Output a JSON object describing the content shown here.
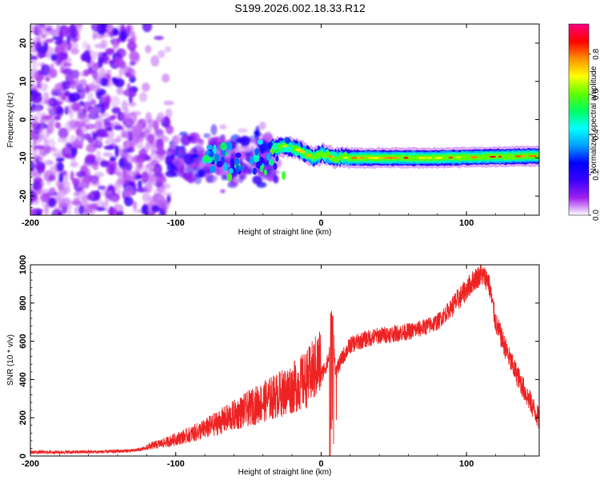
{
  "title": "S199.2026.002.18.33.R12",
  "chart_data": [
    {
      "type": "heatmap",
      "name": "spectrogram",
      "xlabel": "Height of straight line (km)",
      "ylabel": "Frequency (Hz)",
      "xlim": [
        -200,
        150
      ],
      "ylim": [
        -25,
        25
      ],
      "xticks": [
        -200,
        -100,
        0,
        100
      ],
      "yticks": [
        -20,
        -10,
        0,
        10,
        20
      ],
      "colorbar": {
        "label": "Normalized spectral amplitude",
        "range": [
          0,
          0.95
        ],
        "ticks": [
          "0.0",
          "0.2",
          "0.4",
          "0.6",
          "0.8"
        ],
        "tick_values": [
          0.0,
          0.2,
          0.4,
          0.6,
          0.8
        ],
        "stops": [
          "#ffffff",
          "#a020f0",
          "#3a00ff",
          "#0000ff",
          "#00a0ff",
          "#00ffff",
          "#00ff60",
          "#60ff00",
          "#ffff00",
          "#ff9000",
          "#ff0000",
          "#ff0080"
        ]
      },
      "trace_center_hz": [
        {
          "x": -70,
          "y": -9
        },
        {
          "x": -45,
          "y": -8
        },
        {
          "x": -25,
          "y": -7
        },
        {
          "x": -15,
          "y": -8
        },
        {
          "x": -5,
          "y": -10
        },
        {
          "x": 0,
          "y": -9
        },
        {
          "x": 10,
          "y": -10
        },
        {
          "x": 30,
          "y": -10
        },
        {
          "x": 80,
          "y": -10
        },
        {
          "x": 150,
          "y": -9.5
        }
      ],
      "noise_region_km": [
        -200,
        -40
      ],
      "carrier_bandwidth_hz": 2
    },
    {
      "type": "line",
      "name": "snr",
      "xlabel": "Height of straight line (km)",
      "ylabel": "SNR (10 * v/v)",
      "xlim": [
        -200,
        150
      ],
      "ylim": [
        0,
        1000
      ],
      "xticks": [
        -200,
        -100,
        0,
        100
      ],
      "yticks": [
        0,
        200,
        400,
        600,
        800,
        1000
      ],
      "color": "#ee2222",
      "series": [
        {
          "name": "SNR envelope",
          "x": [
            -200,
            -180,
            -150,
            -130,
            -120,
            -110,
            -100,
            -90,
            -80,
            -70,
            -60,
            -50,
            -40,
            -30,
            -20,
            -10,
            -5,
            0,
            5,
            8,
            10,
            15,
            20,
            30,
            40,
            50,
            60,
            70,
            80,
            90,
            100,
            105,
            110,
            115,
            120,
            130,
            140,
            150
          ],
          "values": [
            20,
            20,
            22,
            28,
            40,
            55,
            75,
            95,
            120,
            150,
            180,
            210,
            240,
            270,
            300,
            340,
            380,
            420,
            500,
            700,
            440,
            520,
            580,
            610,
            630,
            640,
            650,
            670,
            700,
            780,
            870,
            920,
            950,
            920,
            700,
            500,
            340,
            190
          ]
        }
      ],
      "features": {
        "spike_x": 7,
        "spike_y": 760,
        "dropout_x": 6,
        "dropout_y": 0,
        "peak_x": 110,
        "peak_y": 1000
      }
    }
  ]
}
